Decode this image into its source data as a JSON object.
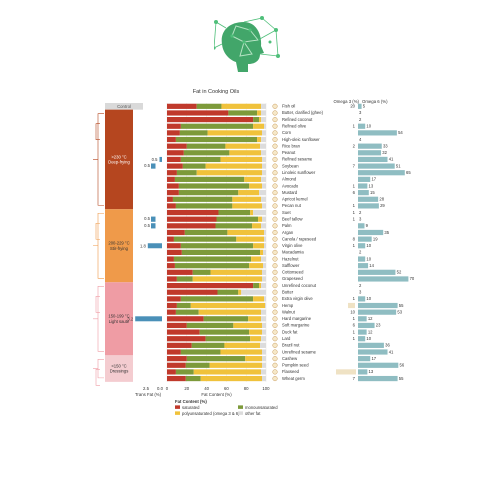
{
  "chart_data": {
    "type": "bar",
    "title": "Fat in Cooking Oils",
    "control_label": "Control",
    "trans_axis": {
      "label": "Trans Fat (%)",
      "ticks": [
        "2.5",
        "0.0"
      ]
    },
    "fat_axis": {
      "label": "Fat Content (%)",
      "ticks": [
        0,
        20,
        40,
        60,
        80,
        100
      ],
      "xlim": [
        0,
        100
      ]
    },
    "omega3_header": "Omega 3 (%)",
    "omega6_header": "Omega 6 (%)",
    "legend": {
      "title": "Fat Content (%)",
      "items": [
        {
          "key": "sat",
          "label": "saturated",
          "color": "#c0392b"
        },
        {
          "key": "mono",
          "label": "monounsaturated",
          "color": "#7d9a3a"
        },
        {
          "key": "poly",
          "label": "polyunsaturated (omega 3 & 6)",
          "color": "#f0c23b"
        },
        {
          "key": "other",
          "label": "other fat",
          "color": "#dcdcdc"
        }
      ]
    },
    "groups": [
      {
        "id": "deep",
        "label": ">230 °C\nDeep-frying",
        "color": "#b5461f",
        "trans_label": "0.5",
        "trans_value": 0.5
      },
      {
        "id": "stir",
        "label": "200-229 °C\nStir-frying",
        "color": "#ef9a4a",
        "trans_label": "1.8",
        "trans_value": 1.8
      },
      {
        "id": "light",
        "label": "150-199 °C\nLight saute",
        "color": "#ef9ca4",
        "trans_label": "3.2",
        "trans_value": 3.2
      },
      {
        "id": "dress",
        "label": "<150 °C\nDressings",
        "color": "#f4ccd0",
        "trans_label": "",
        "trans_value": 0
      }
    ],
    "trans_extra_labels": [
      {
        "row": 17,
        "label": "0.5",
        "value": 0.5
      },
      {
        "row": 18,
        "label": "0.5",
        "value": 0.5
      }
    ],
    "rows": [
      {
        "name": "Fish oil",
        "group": "control",
        "sat": 30,
        "mono": 25,
        "poly": 40,
        "o3": "20",
        "o6": "5"
      },
      {
        "name": "Butter, clarified (ghee)",
        "group": "deep",
        "sat": 62,
        "mono": 29,
        "poly": 4,
        "o3": "",
        "o6": "3"
      },
      {
        "name": "Refined coconut",
        "group": "deep",
        "sat": 87,
        "mono": 6,
        "poly": 2,
        "o3": "",
        "o6": "2"
      },
      {
        "name": "Refined olive",
        "group": "deep",
        "sat": 14,
        "mono": 73,
        "poly": 11,
        "o3": "1",
        "o6": "10"
      },
      {
        "name": "Corn",
        "group": "deep",
        "sat": 13,
        "mono": 28,
        "poly": 55,
        "o3": "",
        "o6": "54"
      },
      {
        "name": "High-oleic sunflower",
        "group": "deep",
        "sat": 9,
        "mono": 82,
        "poly": 4,
        "o3": "",
        "o6": "4"
      },
      {
        "name": "Rice bran",
        "group": "deep",
        "sat": 20,
        "mono": 39,
        "poly": 35,
        "o3": "2",
        "o6": "33"
      },
      {
        "name": "Peanut",
        "group": "deep",
        "sat": 17,
        "mono": 46,
        "poly": 32,
        "o3": "",
        "o6": "32"
      },
      {
        "name": "Refined sesame",
        "group": "deep",
        "sat": 14,
        "mono": 40,
        "poly": 42,
        "o3": "",
        "o6": "41"
      },
      {
        "name": "Soybean",
        "group": "deep",
        "sat": 16,
        "mono": 23,
        "poly": 57,
        "o3": "7",
        "o6": "51"
      },
      {
        "name": "Linoleic sunflower",
        "group": "deep",
        "sat": 10,
        "mono": 20,
        "poly": 66,
        "o3": "",
        "o6": "65"
      },
      {
        "name": "Almond",
        "group": "deep",
        "sat": 8,
        "mono": 70,
        "poly": 17,
        "o3": "",
        "o6": "17"
      },
      {
        "name": "Avocado",
        "group": "deep",
        "sat": 12,
        "mono": 71,
        "poly": 13,
        "o3": "1",
        "o6": "13"
      },
      {
        "name": "Mustard",
        "group": "deep",
        "sat": 12,
        "mono": 60,
        "poly": 21,
        "o3": "6",
        "o6": "15"
      },
      {
        "name": "Apricot kernel",
        "group": "deep",
        "sat": 6,
        "mono": 60,
        "poly": 29,
        "o3": "",
        "o6": "28"
      },
      {
        "name": "Pecan nut",
        "group": "deep",
        "sat": 9,
        "mono": 57,
        "poly": 30,
        "o3": "1",
        "o6": "29"
      },
      {
        "name": "Suet",
        "group": "stir",
        "sat": 52,
        "mono": 32,
        "poly": 3,
        "o3": "1",
        "o6": "2"
      },
      {
        "name": "Beef tallow",
        "group": "stir",
        "sat": 50,
        "mono": 42,
        "poly": 4,
        "o3": "1",
        "o6": "3"
      },
      {
        "name": "Palm",
        "group": "stir",
        "sat": 49,
        "mono": 37,
        "poly": 9,
        "o3": "",
        "o6": "9"
      },
      {
        "name": "Argan",
        "group": "stir",
        "sat": 18,
        "mono": 43,
        "poly": 37,
        "o3": "",
        "o6": "35"
      },
      {
        "name": "Canola / rapeseed",
        "group": "stir",
        "sat": 7,
        "mono": 63,
        "poly": 28,
        "o3": "8",
        "o6": "19"
      },
      {
        "name": "Virgin olive",
        "group": "stir",
        "sat": 14,
        "mono": 73,
        "poly": 11,
        "o3": "1",
        "o6": "10"
      },
      {
        "name": "Macadamia",
        "group": "stir",
        "sat": 15,
        "mono": 79,
        "poly": 3,
        "o3": "",
        "o6": "2"
      },
      {
        "name": "Hazelnut",
        "group": "stir",
        "sat": 7,
        "mono": 78,
        "poly": 10,
        "o3": "",
        "o6": "10"
      },
      {
        "name": "Safflower",
        "group": "stir",
        "sat": 8,
        "mono": 75,
        "poly": 14,
        "o3": "",
        "o6": "14"
      },
      {
        "name": "Cottonseed",
        "group": "stir",
        "sat": 26,
        "mono": 18,
        "poly": 52,
        "o3": "",
        "o6": "52"
      },
      {
        "name": "Grapeseed",
        "group": "stir",
        "sat": 10,
        "mono": 16,
        "poly": 70,
        "o3": "",
        "o6": "70"
      },
      {
        "name": "Unrefined coconut",
        "group": "light",
        "sat": 87,
        "mono": 6,
        "poly": 2,
        "o3": "",
        "o6": "2"
      },
      {
        "name": "Butter",
        "group": "light",
        "sat": 51,
        "mono": 21,
        "poly": 3,
        "o3": "",
        "o6": "3"
      },
      {
        "name": "Extra virgin olive",
        "group": "light",
        "sat": 14,
        "mono": 73,
        "poly": 11,
        "o3": "1",
        "o6": "10"
      },
      {
        "name": "Hemp",
        "group": "light",
        "sat": 10,
        "mono": 14,
        "poly": 75,
        "o3": "20",
        "o6": "55"
      },
      {
        "name": "Walnut",
        "group": "light",
        "sat": 9,
        "mono": 23,
        "poly": 63,
        "o3": "10",
        "o6": "53"
      },
      {
        "name": "Hard margarine",
        "group": "light",
        "sat": 37,
        "mono": 45,
        "poly": 13,
        "o3": "1",
        "o6": "12"
      },
      {
        "name": "Soft margarine",
        "group": "light",
        "sat": 20,
        "mono": 47,
        "poly": 29,
        "o3": "6",
        "o6": "23"
      },
      {
        "name": "Duck fat",
        "group": "light",
        "sat": 33,
        "mono": 50,
        "poly": 13,
        "o3": "1",
        "o6": "12"
      },
      {
        "name": "Lard",
        "group": "light",
        "sat": 39,
        "mono": 45,
        "poly": 11,
        "o3": "1",
        "o6": "10"
      },
      {
        "name": "Brazil nut",
        "group": "light",
        "sat": 25,
        "mono": 33,
        "poly": 36,
        "o3": "",
        "o6": "36"
      },
      {
        "name": "Unrefined sesame",
        "group": "light",
        "sat": 14,
        "mono": 40,
        "poly": 42,
        "o3": "",
        "o6": "41"
      },
      {
        "name": "Cashew",
        "group": "dress",
        "sat": 20,
        "mono": 59,
        "poly": 17,
        "o3": "",
        "o6": "17"
      },
      {
        "name": "Pumpkin seed",
        "group": "dress",
        "sat": 19,
        "mono": 24,
        "poly": 53,
        "o3": "",
        "o6": "56"
      },
      {
        "name": "Flaxseed",
        "group": "dress",
        "sat": 9,
        "mono": 18,
        "poly": 68,
        "o3": "59",
        "o6": "13"
      },
      {
        "name": "Wheat germ",
        "group": "dress",
        "sat": 19,
        "mono": 15,
        "poly": 62,
        "o3": "7",
        "o6": "55"
      }
    ]
  }
}
